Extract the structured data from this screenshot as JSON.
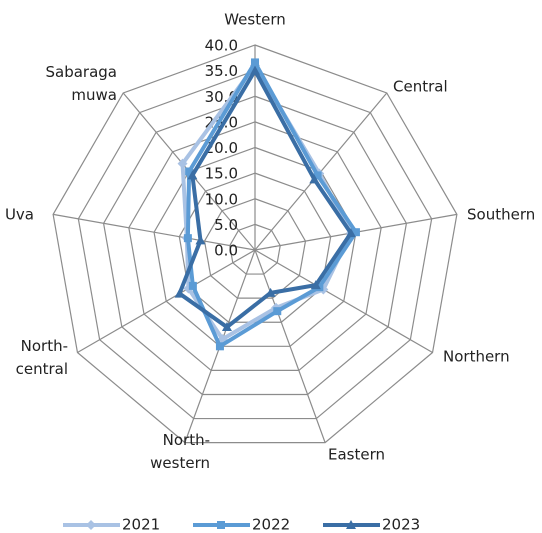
{
  "chart_data": {
    "type": "radar",
    "categories": [
      "Western",
      "Central",
      "Southern",
      "Northern",
      "Eastern",
      "North-\nwestern",
      "North-\ncentral",
      "Uva",
      "Sabaraga\nmuwa"
    ],
    "rlim": [
      0,
      40
    ],
    "rticks": [
      {
        "value": 0,
        "label": "0.0"
      },
      {
        "value": 5,
        "label": "5.0"
      },
      {
        "value": 10,
        "label": "10.0"
      },
      {
        "value": 15,
        "label": "15.0"
      },
      {
        "value": 20,
        "label": "20.0"
      },
      {
        "value": 25,
        "label": "25.0"
      },
      {
        "value": 30,
        "label": "30.0"
      },
      {
        "value": 35,
        "label": "35.0"
      },
      {
        "value": 40,
        "label": "40.0"
      }
    ],
    "grid": true,
    "legend": "bottom",
    "series": [
      {
        "name": "2021",
        "color": "#a9c2e4",
        "marker": "diamond",
        "values": [
          36,
          19.5,
          19,
          15.4,
          12,
          18.5,
          15,
          13.5,
          22
        ]
      },
      {
        "name": "2022",
        "color": "#5b9bd5",
        "marker": "square",
        "values": [
          36.6,
          19,
          20,
          14.5,
          12.7,
          20,
          14,
          13.3,
          20
        ]
      },
      {
        "name": "2023",
        "color": "#3a6ea5",
        "marker": "triangle",
        "values": [
          35,
          18,
          19,
          13.7,
          8.9,
          16,
          17,
          10.8,
          19
        ]
      }
    ]
  }
}
